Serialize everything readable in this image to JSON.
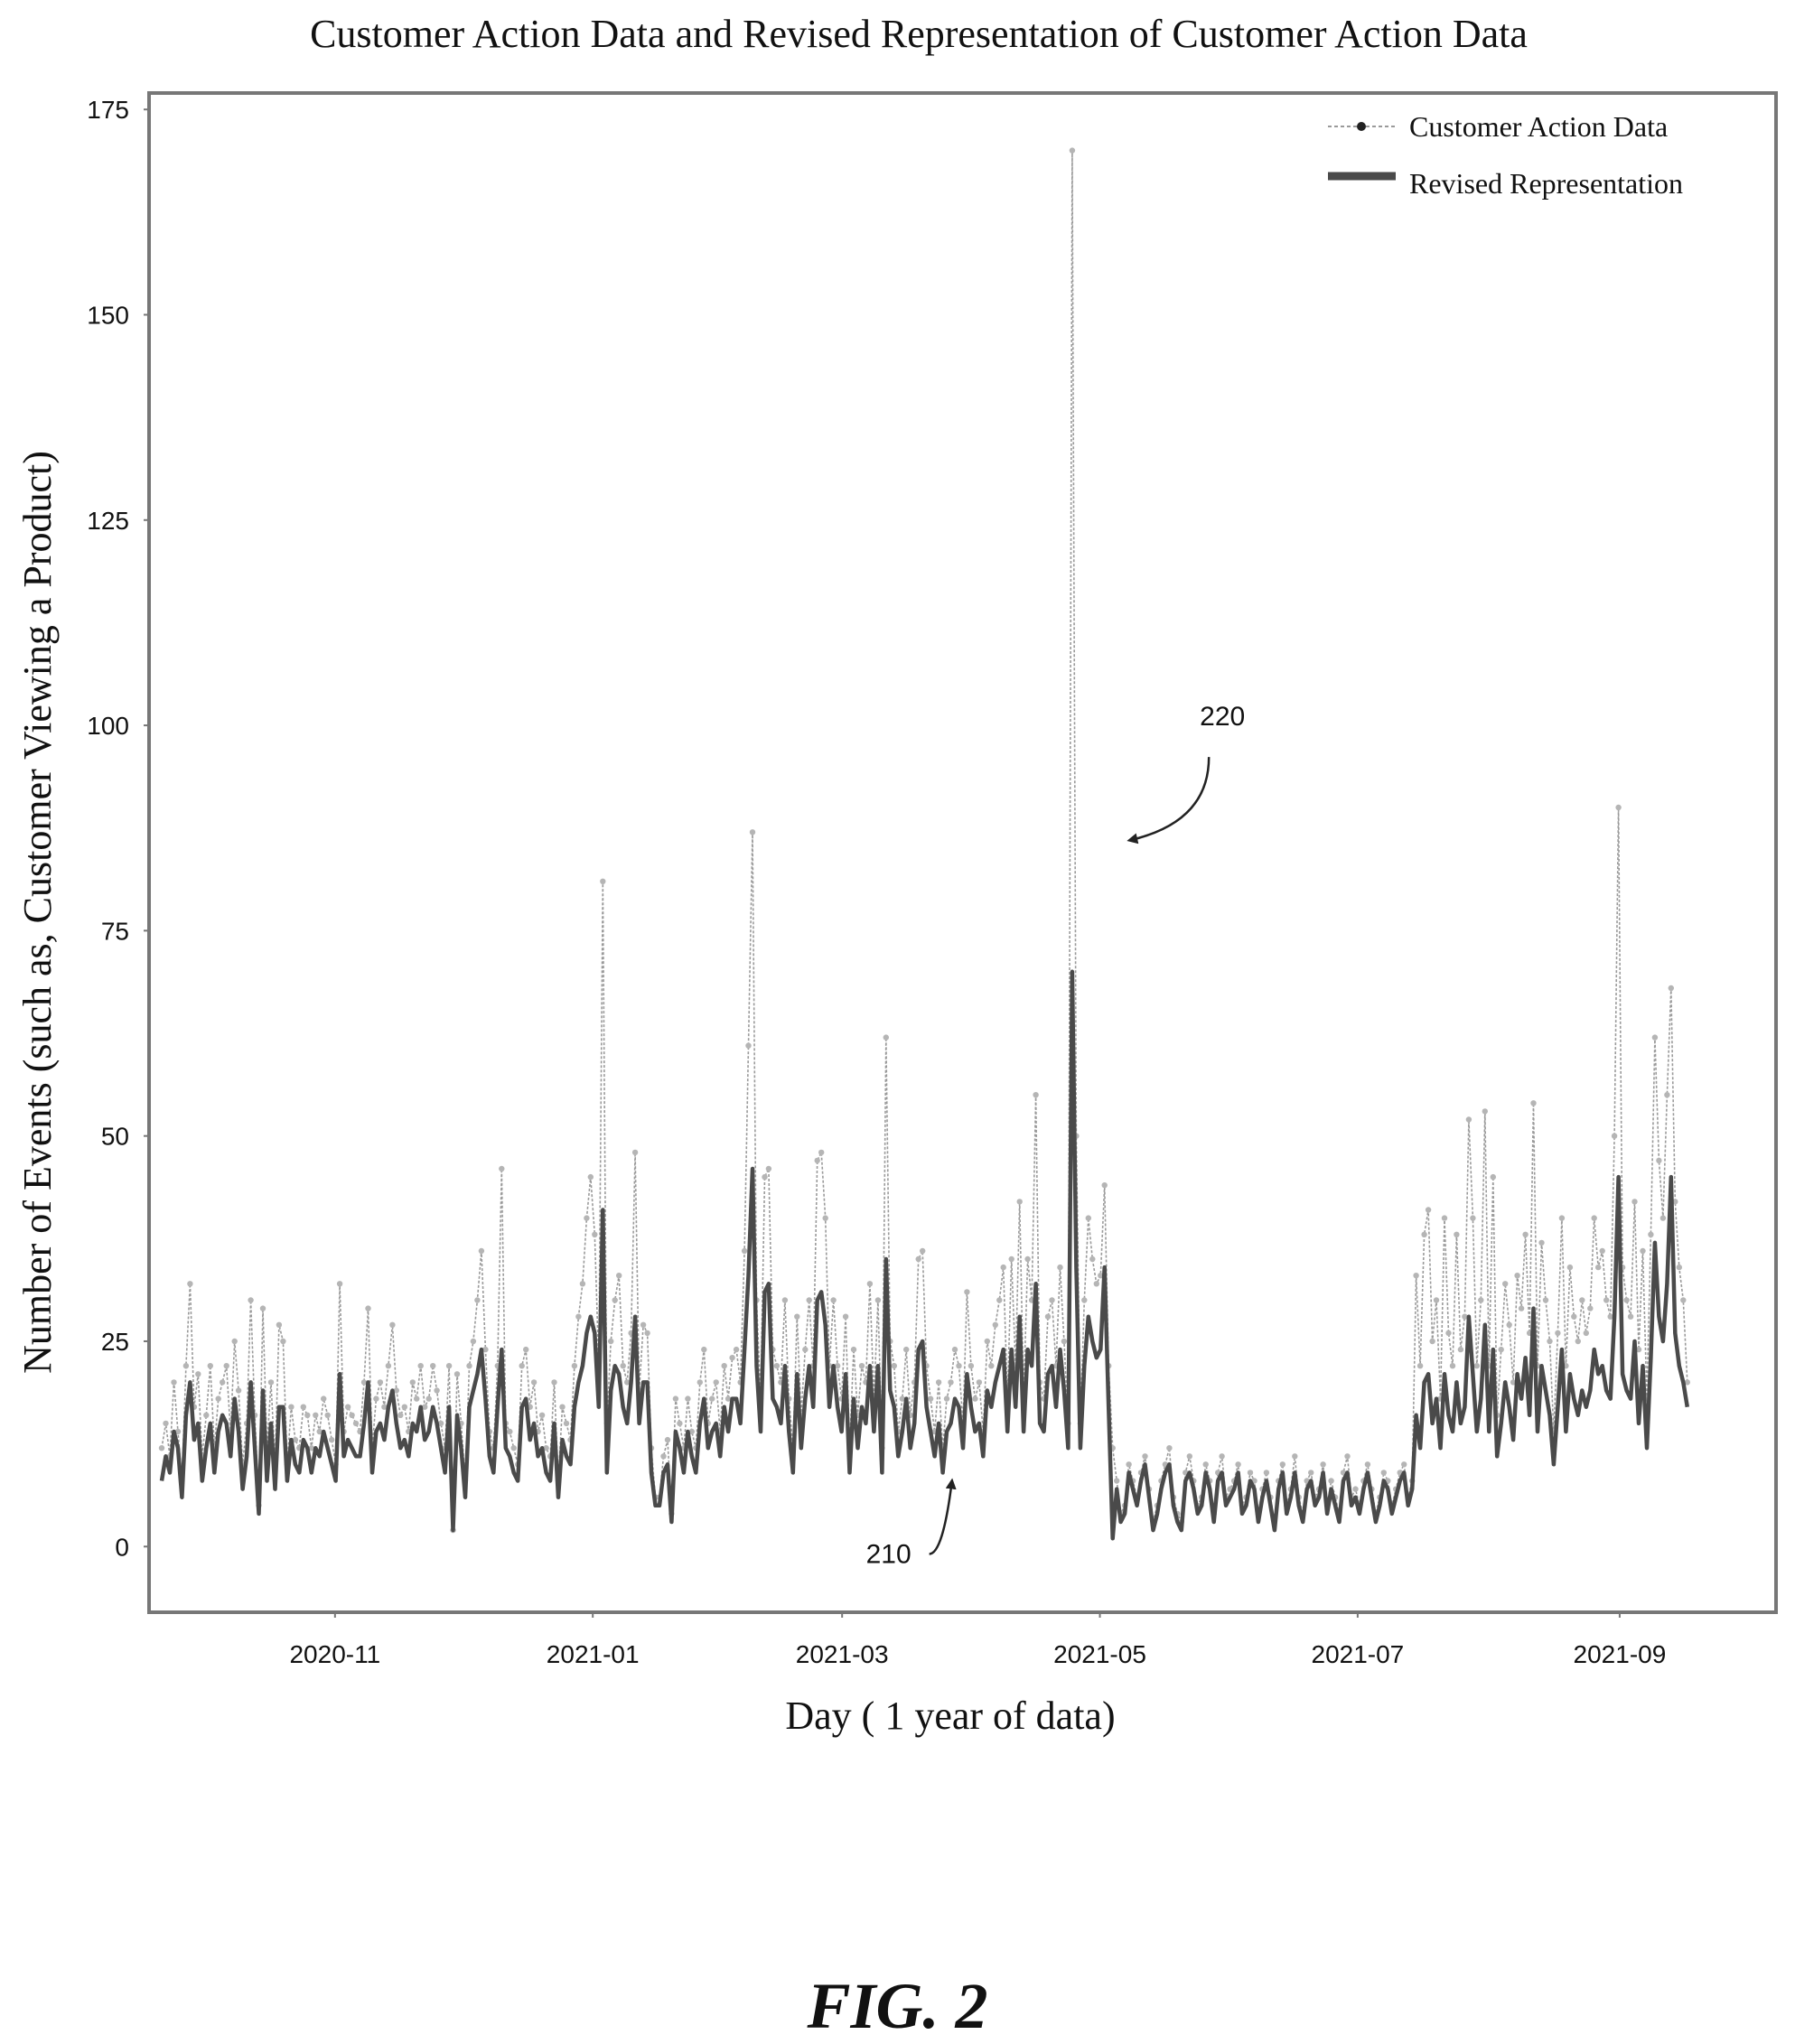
{
  "figure_caption": "FIG. 2",
  "chart_data": {
    "type": "line",
    "title": "Customer Action Data and Revised Representation of Customer Action Data",
    "xlabel": "Day ( 1 year of data)",
    "ylabel": "Number of Events (such as, Customer Viewing a Product)",
    "ylim": [
      -8,
      177
    ],
    "xlim": [
      "2020-09-18",
      "2021-10-08"
    ],
    "y_ticks": [
      0,
      25,
      50,
      75,
      100,
      125,
      150,
      175
    ],
    "y_tick_labels": [
      "0",
      "25",
      "50",
      "75",
      "100",
      "125",
      "150",
      "175"
    ],
    "x_ticks": [
      "2020-11-01",
      "2021-01-01",
      "2021-03-01",
      "2021-05-01",
      "2021-07-01",
      "2021-09-01"
    ],
    "x_tick_labels": [
      "2020-11",
      "2021-01",
      "2021-03",
      "2021-05",
      "2021-07",
      "2021-09"
    ],
    "legend": {
      "position": "top-right",
      "entries": [
        "Customer Action Data",
        "Revised Representation"
      ]
    },
    "colors": {
      "raw": "#9a9a9a",
      "revised": "#4a4a4a",
      "frame": "#777777"
    },
    "grid": false,
    "x_start": "2020-09-21",
    "series": [
      {
        "name": "Customer Action Data",
        "style": "thin dotted line with markers",
        "values": [
          12,
          15,
          11,
          20,
          14,
          8,
          22,
          32,
          17,
          21,
          11,
          16,
          22,
          12,
          18,
          20,
          22,
          14,
          25,
          19,
          10,
          15,
          30,
          16,
          5,
          29,
          12,
          20,
          10,
          27,
          25,
          10,
          17,
          13,
          12,
          17,
          16,
          12,
          16,
          14,
          18,
          16,
          13,
          10,
          32,
          14,
          17,
          16,
          15,
          14,
          20,
          29,
          12,
          18,
          20,
          17,
          22,
          27,
          19,
          16,
          17,
          14,
          20,
          18,
          22,
          17,
          18,
          22,
          19,
          15,
          12,
          22,
          2,
          21,
          15,
          8,
          22,
          25,
          30,
          36,
          24,
          14,
          12,
          22,
          46,
          15,
          14,
          12,
          10,
          22,
          24,
          17,
          20,
          14,
          16,
          12,
          11,
          20,
          8,
          17,
          15,
          13,
          22,
          28,
          32,
          40,
          45,
          38,
          22,
          81,
          15,
          25,
          30,
          33,
          22,
          20,
          26,
          48,
          19,
          27,
          26,
          12,
          6,
          6,
          11,
          13,
          4,
          18,
          15,
          12,
          18,
          14,
          12,
          20,
          24,
          15,
          18,
          20,
          14,
          22,
          18,
          23,
          24,
          20,
          36,
          61,
          87,
          30,
          18,
          45,
          46,
          24,
          22,
          20,
          30,
          18,
          12,
          28,
          16,
          24,
          30,
          22,
          47,
          48,
          40,
          22,
          30,
          22,
          18,
          28,
          12,
          24,
          16,
          22,
          20,
          32,
          18,
          30,
          12,
          62,
          25,
          22,
          14,
          18,
          24,
          16,
          20,
          35,
          36,
          22,
          18,
          14,
          20,
          12,
          18,
          20,
          24,
          22,
          15,
          31,
          22,
          18,
          20,
          14,
          25,
          22,
          27,
          30,
          34,
          18,
          35,
          22,
          42,
          18,
          35,
          30,
          55,
          20,
          18,
          28,
          30,
          22,
          34,
          25,
          15,
          170,
          50,
          15,
          30,
          40,
          35,
          32,
          33,
          44,
          22,
          12,
          8,
          4,
          5,
          10,
          8,
          6,
          9,
          11,
          7,
          3,
          5,
          8,
          10,
          12,
          6,
          4,
          3,
          9,
          11,
          8,
          5,
          6,
          10,
          8,
          4,
          9,
          11,
          6,
          7,
          8,
          10,
          5,
          6,
          9,
          8,
          4,
          7,
          9,
          6,
          3,
          8,
          10,
          5,
          7,
          11,
          6,
          4,
          8,
          9,
          6,
          7,
          10,
          5,
          8,
          6,
          4,
          9,
          11,
          6,
          7,
          5,
          8,
          10,
          7,
          4,
          6,
          9,
          8,
          5,
          7,
          9,
          10,
          6,
          8,
          33,
          22,
          38,
          41,
          25,
          30,
          18,
          40,
          26,
          22,
          38,
          24,
          28,
          52,
          40,
          22,
          30,
          53,
          22,
          45,
          16,
          24,
          32,
          27,
          20,
          33,
          29,
          38,
          26,
          54,
          22,
          37,
          30,
          25,
          14,
          26,
          40,
          22,
          34,
          28,
          25,
          30,
          26,
          29,
          40,
          34,
          36,
          30,
          28,
          50,
          90,
          34,
          30,
          28,
          42,
          24,
          36,
          18,
          38,
          62,
          47,
          40,
          55,
          68,
          42,
          34,
          30,
          20
        ]
      },
      {
        "name": "Revised Representation",
        "style": "thick solid line",
        "values": [
          8,
          11,
          9,
          14,
          12,
          6,
          16,
          20,
          13,
          15,
          8,
          12,
          15,
          9,
          14,
          16,
          15,
          11,
          18,
          14,
          7,
          11,
          20,
          12,
          4,
          19,
          8,
          15,
          7,
          17,
          17,
          8,
          13,
          10,
          9,
          13,
          12,
          9,
          12,
          11,
          14,
          12,
          10,
          8,
          21,
          11,
          13,
          12,
          11,
          11,
          15,
          20,
          9,
          14,
          15,
          13,
          17,
          19,
          15,
          12,
          13,
          11,
          15,
          14,
          17,
          13,
          14,
          17,
          15,
          12,
          9,
          17,
          2,
          16,
          12,
          6,
          17,
          19,
          21,
          24,
          18,
          11,
          9,
          17,
          24,
          12,
          11,
          9,
          8,
          17,
          18,
          13,
          15,
          11,
          12,
          9,
          8,
          15,
          6,
          13,
          11,
          10,
          17,
          20,
          22,
          26,
          28,
          26,
          17,
          41,
          9,
          19,
          22,
          21,
          17,
          15,
          20,
          28,
          15,
          20,
          20,
          9,
          5,
          5,
          9,
          10,
          3,
          14,
          12,
          9,
          14,
          11,
          9,
          15,
          18,
          12,
          14,
          15,
          11,
          17,
          14,
          18,
          18,
          15,
          24,
          33,
          46,
          22,
          14,
          31,
          32,
          18,
          17,
          15,
          22,
          14,
          9,
          21,
          12,
          18,
          22,
          17,
          30,
          31,
          27,
          17,
          22,
          17,
          14,
          21,
          9,
          18,
          12,
          17,
          15,
          22,
          14,
          22,
          9,
          35,
          19,
          17,
          11,
          14,
          18,
          12,
          15,
          24,
          25,
          17,
          14,
          11,
          15,
          9,
          14,
          15,
          18,
          17,
          12,
          21,
          17,
          14,
          15,
          11,
          19,
          17,
          20,
          22,
          24,
          14,
          24,
          17,
          28,
          14,
          24,
          22,
          32,
          15,
          14,
          21,
          22,
          17,
          24,
          19,
          12,
          70,
          34,
          12,
          22,
          28,
          25,
          23,
          24,
          34,
          17,
          1,
          7,
          3,
          4,
          9,
          7,
          5,
          8,
          10,
          6,
          2,
          4,
          7,
          9,
          10,
          5,
          3,
          2,
          8,
          9,
          7,
          4,
          5,
          9,
          7,
          3,
          8,
          9,
          5,
          6,
          7,
          9,
          4,
          5,
          8,
          7,
          3,
          6,
          8,
          5,
          2,
          7,
          9,
          4,
          6,
          9,
          5,
          3,
          7,
          8,
          5,
          6,
          9,
          4,
          7,
          5,
          3,
          8,
          9,
          5,
          6,
          4,
          7,
          9,
          6,
          3,
          5,
          8,
          7,
          4,
          6,
          8,
          9,
          5,
          7,
          16,
          12,
          20,
          21,
          15,
          18,
          12,
          21,
          16,
          14,
          20,
          15,
          17,
          28,
          21,
          14,
          18,
          27,
          14,
          24,
          11,
          15,
          20,
          17,
          13,
          21,
          18,
          23,
          16,
          29,
          14,
          22,
          19,
          16,
          10,
          17,
          24,
          14,
          21,
          18,
          16,
          19,
          17,
          19,
          24,
          21,
          22,
          19,
          18,
          28,
          45,
          21,
          19,
          18,
          25,
          15,
          22,
          12,
          23,
          37,
          28,
          25,
          32,
          45,
          26,
          22,
          20,
          17
        ]
      }
    ],
    "annotations": [
      {
        "text": "220",
        "x": "2021-05-30",
        "y": 100,
        "target_x": "2021-05-08",
        "target_y": 86
      },
      {
        "text": "210",
        "x": "2021-03-12",
        "y": -2,
        "target_x": "2021-03-27",
        "target_y": 8
      }
    ]
  }
}
